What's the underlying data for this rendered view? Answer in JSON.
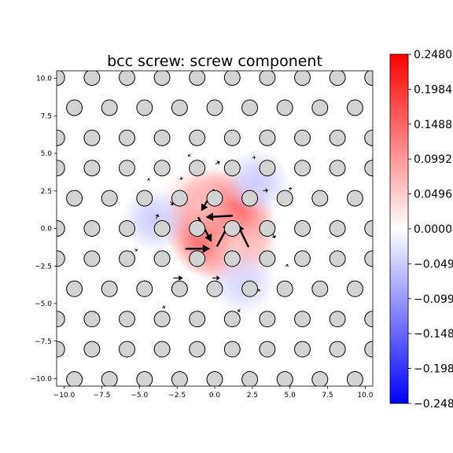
{
  "chart_data": {
    "type": "heatmap",
    "title": "bcc screw: screw component",
    "xlabel": "",
    "ylabel": "",
    "xlim": [
      -10.5,
      10.5
    ],
    "ylim": [
      -10.5,
      10.5
    ],
    "x_ticks": [
      "−10.0",
      "−7.5",
      "−5.0",
      "−2.5",
      "0.0",
      "2.5",
      "5.0",
      "7.5",
      "10.0"
    ],
    "x_tick_values": [
      -10,
      -7.5,
      -5,
      -2.5,
      0,
      2.5,
      5,
      7.5,
      10
    ],
    "y_ticks": [
      "−10.0",
      "−7.5",
      "−5.0",
      "−2.5",
      "0.0",
      "2.5",
      "5.0",
      "7.5",
      "10.0"
    ],
    "y_tick_values": [
      -10,
      -7.5,
      -5,
      -2.5,
      0,
      2.5,
      5,
      7.5,
      10
    ],
    "colorbar": {
      "min": -0.248,
      "max": 0.248,
      "ticks": [
        "−0.2480",
        "−0.1984",
        "−0.1488",
        "−0.0992",
        "−0.0496",
        "0.0000",
        "0.0496",
        "0.0992",
        "0.1488",
        "0.1984",
        "0.2480"
      ],
      "tick_values": [
        -0.248,
        -0.1984,
        -0.1488,
        -0.0992,
        -0.0496,
        0,
        0.0496,
        0.0992,
        0.1488,
        0.1984,
        0.248
      ],
      "colormap": "bwr"
    },
    "lattice": {
      "row_spacing": 2.01,
      "column_spacing": 2.33,
      "row_offset": 1.165,
      "atom_radius": 0.52
    },
    "field_blobs": [
      {
        "x": 0.35,
        "y": 0.2,
        "value": 0.248,
        "spread": 1.7
      },
      {
        "x": -0.8,
        "y": 1.5,
        "value": 0.06,
        "spread": 1.3
      },
      {
        "x": 1.5,
        "y": -1.2,
        "value": 0.05,
        "spread": 1.3
      },
      {
        "x": 2.8,
        "y": 3.1,
        "value": -0.05,
        "spread": 1.0
      },
      {
        "x": -4.0,
        "y": 0.6,
        "value": -0.05,
        "spread": 1.0
      },
      {
        "x": 1.9,
        "y": -3.6,
        "value": -0.04,
        "spread": 1.0
      }
    ],
    "arrows": [
      {
        "x1": 1.2,
        "y1": 0.85,
        "x2": -0.6,
        "y2": 0.75,
        "width": 2.5
      },
      {
        "x1": -1.1,
        "y1": 0.75,
        "x2": -0.2,
        "y2": -0.9,
        "width": 2.5
      },
      {
        "x1": -1.95,
        "y1": -1.35,
        "x2": -0.3,
        "y2": -1.35,
        "width": 2.5
      },
      {
        "x1": 0.15,
        "y1": -1.2,
        "x2": 1.0,
        "y2": 0.4,
        "width": 2.5
      },
      {
        "x1": 2.25,
        "y1": -1.25,
        "x2": 1.5,
        "y2": 0.3,
        "width": 2.5
      },
      {
        "x1": -0.05,
        "y1": 2.6,
        "x2": -0.9,
        "y2": 1.15,
        "width": 2.2
      },
      {
        "x1": -2.75,
        "y1": -3.3,
        "x2": -2.1,
        "y2": -3.3,
        "width": 1.2
      },
      {
        "x1": -0.15,
        "y1": -3.3,
        "x2": 0.35,
        "y2": -3.3,
        "width": 1.2
      },
      {
        "x1": 0.05,
        "y1": 4.3,
        "x2": 0.35,
        "y2": 4.45,
        "width": 1.0
      },
      {
        "x1": 3.2,
        "y1": 2.5,
        "x2": 3.55,
        "y2": 2.55,
        "width": 1.0
      },
      {
        "x1": -2.95,
        "y1": 1.8,
        "x2": -2.75,
        "y2": 1.55,
        "width": 1.0
      },
      {
        "x1": 3.85,
        "y1": -0.35,
        "x2": 4.0,
        "y2": -0.65,
        "width": 1.0
      },
      {
        "x1": -3.9,
        "y1": 0.65,
        "x2": -3.75,
        "y2": 0.95,
        "width": 1.0
      },
      {
        "x1": 1.7,
        "y1": -5.35,
        "x2": 1.55,
        "y2": -5.55,
        "width": 0.8
      },
      {
        "x1": -3.5,
        "y1": -5.3,
        "x2": -3.3,
        "y2": -5.2,
        "width": 0.8
      },
      {
        "x1": -1.6,
        "y1": 4.95,
        "x2": -1.75,
        "y2": 4.8,
        "width": 0.8
      },
      {
        "x1": 5.0,
        "y1": 2.5,
        "x2": 5.05,
        "y2": 2.75,
        "width": 0.8
      },
      {
        "x1": -5.3,
        "y1": -1.35,
        "x2": -5.15,
        "y2": -1.5,
        "width": 0.8
      },
      {
        "x1": 4.9,
        "y1": -2.55,
        "x2": 4.75,
        "y2": -2.4,
        "width": 0.8
      },
      {
        "x1": -4.3,
        "y1": 3.2,
        "x2": -4.45,
        "y2": 3.3,
        "width": 0.8
      },
      {
        "x1": 2.5,
        "y1": 4.7,
        "x2": 2.7,
        "y2": 4.75,
        "width": 0.8
      },
      {
        "x1": -2.25,
        "y1": 3.45,
        "x2": -2.2,
        "y2": 3.25,
        "width": 0.8
      },
      {
        "x1": 2.85,
        "y1": -4.2,
        "x2": 3.0,
        "y2": -4.05,
        "width": 0.8
      },
      {
        "x1": -4.7,
        "y1": -3.45,
        "x2": -4.55,
        "y2": -3.6,
        "width": 0.8
      }
    ],
    "colors": {
      "atom_fill": "#d3d3d3",
      "atom_stroke": "#000000",
      "arrow": "#000000"
    }
  }
}
